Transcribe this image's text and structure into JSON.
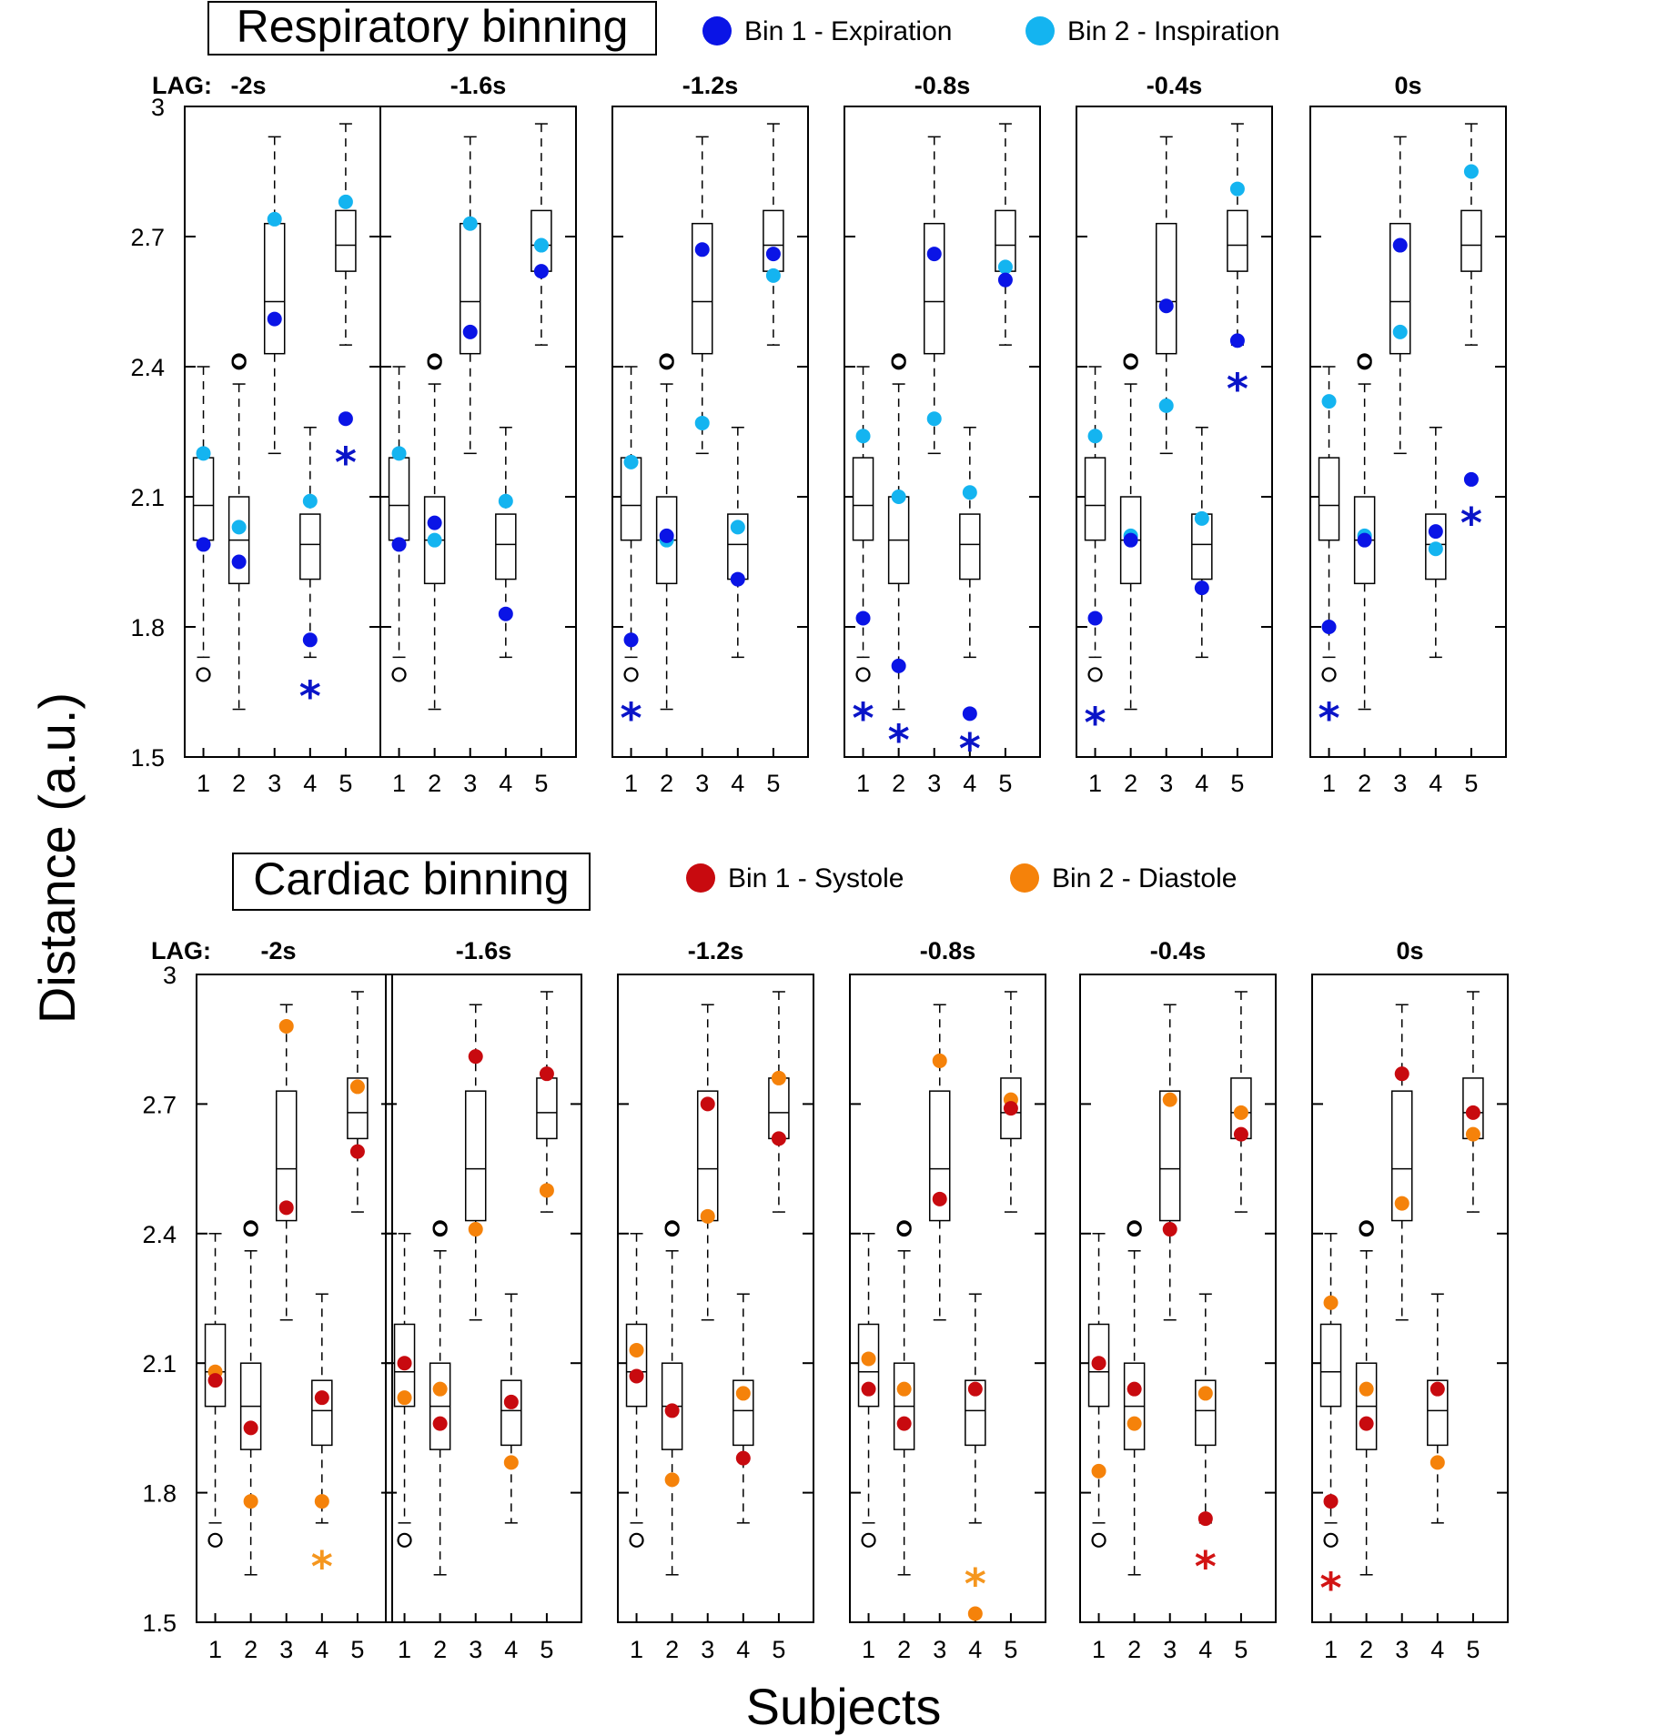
{
  "chart_data": {
    "type": "box",
    "ylabel": "Distance (a.u.)",
    "xlabel": "Subjects",
    "ylim": [
      1.5,
      3.0
    ],
    "yticks": [
      "1.5",
      "1.8",
      "2.1",
      "2.4",
      "2.7",
      "3"
    ],
    "categories": [
      "1",
      "2",
      "3",
      "4",
      "5"
    ],
    "lag_prefix": "LAG:",
    "boxplots": [
      {
        "subject": "1",
        "whisker_low": 1.73,
        "q1": 2.0,
        "median": 2.08,
        "q3": 2.19,
        "whisker_high": 2.4,
        "outliers": [
          1.69
        ]
      },
      {
        "subject": "2",
        "whisker_low": 1.61,
        "q1": 1.9,
        "median": 2.0,
        "q3": 2.1,
        "whisker_high": 2.36,
        "outliers": [
          2.41,
          2.42
        ]
      },
      {
        "subject": "3",
        "whisker_low": 2.2,
        "q1": 2.43,
        "median": 2.55,
        "q3": 2.73,
        "whisker_high": 2.93,
        "outliers": []
      },
      {
        "subject": "4",
        "whisker_low": 1.73,
        "q1": 1.91,
        "median": 1.99,
        "q3": 2.06,
        "whisker_high": 2.26,
        "outliers": []
      },
      {
        "subject": "5",
        "whisker_low": 2.45,
        "q1": 2.62,
        "median": 2.68,
        "q3": 2.76,
        "whisker_high": 2.96,
        "outliers": []
      }
    ],
    "panels": [
      {
        "title": "Respiratory binning",
        "legend": [
          {
            "name": "Bin 1 - Expiration",
            "color": "#0a14e6"
          },
          {
            "name": "Bin 2 - Inspiration",
            "color": "#14b4f0"
          }
        ],
        "star_color": "#0a14c8",
        "lags": [
          {
            "label": "-2s",
            "bin1": [
              1.99,
              1.95,
              2.51,
              1.77,
              2.28
            ],
            "bin2": [
              2.2,
              2.03,
              2.74,
              2.09,
              2.78
            ],
            "stars": [
              {
                "subject": "4",
                "value": 1.66
              },
              {
                "subject": "5",
                "value": 2.2
              }
            ]
          },
          {
            "label": "-1.6s",
            "bin1": [
              1.99,
              2.04,
              2.48,
              1.83,
              2.62
            ],
            "bin2": [
              2.2,
              2.0,
              2.73,
              2.09,
              2.68
            ],
            "stars": []
          },
          {
            "label": "-1.2s",
            "bin1": [
              1.77,
              2.01,
              2.67,
              1.91,
              2.66
            ],
            "bin2": [
              2.18,
              2.0,
              2.27,
              2.03,
              2.61
            ],
            "stars": [
              {
                "subject": "1",
                "value": 1.61
              }
            ]
          },
          {
            "label": "-0.8s",
            "bin1": [
              1.82,
              1.71,
              2.66,
              1.6,
              2.6
            ],
            "bin2": [
              2.24,
              2.1,
              2.28,
              2.11,
              2.63
            ],
            "stars": [
              {
                "subject": "1",
                "value": 1.61
              },
              {
                "subject": "2",
                "value": 1.56
              },
              {
                "subject": "4",
                "value": 1.54
              }
            ]
          },
          {
            "label": "-0.4s",
            "bin1": [
              1.82,
              2.0,
              2.54,
              1.89,
              2.46
            ],
            "bin2": [
              2.24,
              2.01,
              2.31,
              2.05,
              2.81
            ],
            "stars": [
              {
                "subject": "1",
                "value": 1.6
              },
              {
                "subject": "5",
                "value": 2.37
              }
            ]
          },
          {
            "label": "0s",
            "bin1": [
              1.8,
              2.0,
              2.68,
              2.02,
              2.14
            ],
            "bin2": [
              2.32,
              2.01,
              2.48,
              1.98,
              2.85
            ],
            "stars": [
              {
                "subject": "1",
                "value": 1.61
              },
              {
                "subject": "5",
                "value": 2.06
              }
            ]
          }
        ]
      },
      {
        "title": "Cardiac binning",
        "legend": [
          {
            "name": "Bin 1 - Systole",
            "color": "#c80a0f"
          },
          {
            "name": "Bin 2 - Diastole",
            "color": "#f5820a"
          }
        ],
        "star_color": null,
        "lags": [
          {
            "label": "-2s",
            "bin1": [
              2.06,
              1.95,
              2.46,
              2.02,
              2.59
            ],
            "bin2": [
              2.08,
              1.78,
              2.88,
              1.78,
              2.74
            ],
            "stars": [
              {
                "subject": "4",
                "value": 1.65,
                "color": "#f5961e"
              }
            ]
          },
          {
            "label": "-1.6s",
            "bin1": [
              2.1,
              1.96,
              2.81,
              2.01,
              2.77
            ],
            "bin2": [
              2.02,
              2.04,
              2.41,
              1.87,
              2.5
            ],
            "stars": []
          },
          {
            "label": "-1.2s",
            "bin1": [
              2.07,
              1.99,
              2.7,
              1.88,
              2.62
            ],
            "bin2": [
              2.13,
              1.83,
              2.44,
              2.03,
              2.76
            ],
            "stars": []
          },
          {
            "label": "-0.8s",
            "bin1": [
              2.04,
              1.96,
              2.48,
              2.04,
              2.69
            ],
            "bin2": [
              2.11,
              2.04,
              2.8,
              1.52,
              2.71
            ],
            "stars": [
              {
                "subject": "4",
                "value": 1.61,
                "color": "#f5961e"
              }
            ]
          },
          {
            "label": "-0.4s",
            "bin1": [
              2.1,
              2.04,
              2.41,
              1.74,
              2.63
            ],
            "bin2": [
              1.85,
              1.96,
              2.71,
              2.03,
              2.68
            ],
            "stars": [
              {
                "subject": "4",
                "value": 1.65,
                "color": "#d21414"
              }
            ]
          },
          {
            "label": "0s",
            "bin1": [
              1.78,
              1.96,
              2.77,
              2.04,
              2.68
            ],
            "bin2": [
              2.24,
              2.04,
              2.47,
              1.87,
              2.63
            ],
            "stars": [
              {
                "subject": "1",
                "value": 1.6,
                "color": "#d21414"
              }
            ]
          }
        ]
      }
    ]
  }
}
